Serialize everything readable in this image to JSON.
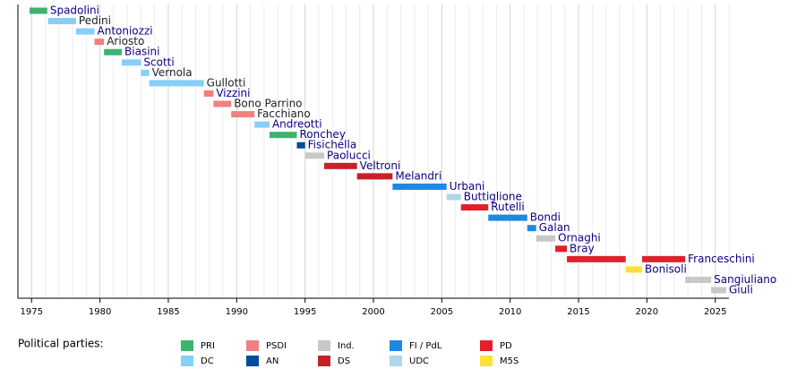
{
  "chart_data": {
    "type": "timeline",
    "xlim": [
      1974,
      2026
    ],
    "xticks": [
      1975,
      1980,
      1985,
      1990,
      1995,
      2000,
      2005,
      2010,
      2015,
      2020,
      2025
    ],
    "minor_xticks": [
      1974,
      1976,
      1977,
      1978,
      1979,
      1981,
      1982,
      1983,
      1984,
      1986,
      1987,
      1988,
      1989,
      1991,
      1992,
      1993,
      1994,
      1996,
      1997,
      1998,
      1999,
      2001,
      2002,
      2003,
      2004,
      2006,
      2007,
      2008,
      2009,
      2011,
      2012,
      2013,
      2014,
      2016,
      2017,
      2018,
      2019,
      2021,
      2022,
      2023,
      2024,
      2026
    ],
    "grid": true,
    "legend_title": "Political parties:",
    "parties": [
      {
        "name": "PRI",
        "color": "#3cb371"
      },
      {
        "name": "DC",
        "color": "#87cefa"
      },
      {
        "name": "PSDI",
        "color": "#f08080"
      },
      {
        "name": "AN",
        "color": "#004c99"
      },
      {
        "name": "Ind.",
        "color": "#c8c8c8"
      },
      {
        "name": "DS",
        "color": "#c8202a"
      },
      {
        "name": "FI / PdL",
        "color": "#1e88e5"
      },
      {
        "name": "UDC",
        "color": "#add8e6"
      },
      {
        "name": "PD",
        "color": "#e0202a"
      },
      {
        "name": "M5S",
        "color": "#ffe135"
      }
    ],
    "rows": [
      {
        "name": "Spadolini",
        "label_color": "#0b0080",
        "terms": [
          {
            "start": 1974.85,
            "end": 1976.15,
            "party": "PRI"
          }
        ]
      },
      {
        "name": "Pedini",
        "label_color": "#202122",
        "terms": [
          {
            "start": 1976.2,
            "end": 1978.25,
            "party": "DC"
          }
        ]
      },
      {
        "name": "Antoniozzi",
        "label_color": "#0b0080",
        "terms": [
          {
            "start": 1978.25,
            "end": 1979.6,
            "party": "DC"
          }
        ]
      },
      {
        "name": "Ariosto",
        "label_color": "#202122",
        "terms": [
          {
            "start": 1979.6,
            "end": 1980.3,
            "party": "PSDI"
          }
        ]
      },
      {
        "name": "Biasini",
        "label_color": "#0b0080",
        "terms": [
          {
            "start": 1980.3,
            "end": 1981.6,
            "party": "PRI"
          }
        ]
      },
      {
        "name": "Scotti",
        "label_color": "#0b0080",
        "terms": [
          {
            "start": 1981.6,
            "end": 1983.0,
            "party": "DC"
          }
        ]
      },
      {
        "name": "Vernola",
        "label_color": "#202122",
        "terms": [
          {
            "start": 1983.0,
            "end": 1983.6,
            "party": "DC"
          }
        ]
      },
      {
        "name": "Gullotti",
        "label_color": "#202122",
        "terms": [
          {
            "start": 1983.6,
            "end": 1987.6,
            "party": "DC"
          }
        ]
      },
      {
        "name": "Vizzini",
        "label_color": "#0b0080",
        "terms": [
          {
            "start": 1987.6,
            "end": 1988.3,
            "party": "PSDI"
          }
        ]
      },
      {
        "name": "Bono Parrino",
        "label_color": "#202122",
        "terms": [
          {
            "start": 1988.3,
            "end": 1989.6,
            "party": "PSDI"
          }
        ]
      },
      {
        "name": "Facchiano",
        "label_color": "#202122",
        "terms": [
          {
            "start": 1989.6,
            "end": 1991.3,
            "party": "PSDI"
          }
        ]
      },
      {
        "name": "Andreotti",
        "label_color": "#0b0080",
        "terms": [
          {
            "start": 1991.3,
            "end": 1992.4,
            "party": "DC"
          }
        ]
      },
      {
        "name": "Ronchey",
        "label_color": "#0b0080",
        "terms": [
          {
            "start": 1992.4,
            "end": 1994.4,
            "party": "PRI"
          }
        ]
      },
      {
        "name": "Fisichella",
        "label_color": "#0b0080",
        "terms": [
          {
            "start": 1994.4,
            "end": 1995.0,
            "party": "AN"
          }
        ]
      },
      {
        "name": "Paolucci",
        "label_color": "#0b0080",
        "terms": [
          {
            "start": 1995.0,
            "end": 1996.4,
            "party": "Ind."
          }
        ]
      },
      {
        "name": "Veltroni",
        "label_color": "#0b0080",
        "terms": [
          {
            "start": 1996.4,
            "end": 1998.8,
            "party": "DS"
          }
        ]
      },
      {
        "name": "Melandri",
        "label_color": "#0b0080",
        "terms": [
          {
            "start": 1998.8,
            "end": 2001.4,
            "party": "DS"
          }
        ]
      },
      {
        "name": "Urbani",
        "label_color": "#0b0080",
        "terms": [
          {
            "start": 2001.4,
            "end": 2005.35,
            "party": "FI / PdL"
          }
        ]
      },
      {
        "name": "Buttiglione",
        "label_color": "#0b0080",
        "terms": [
          {
            "start": 2005.35,
            "end": 2006.4,
            "party": "UDC"
          }
        ]
      },
      {
        "name": "Rutelli",
        "label_color": "#0b0080",
        "terms": [
          {
            "start": 2006.4,
            "end": 2008.4,
            "party": "PD"
          }
        ]
      },
      {
        "name": "Bondi",
        "label_color": "#0b0080",
        "terms": [
          {
            "start": 2008.4,
            "end": 2011.25,
            "party": "FI / PdL"
          }
        ]
      },
      {
        "name": "Galan",
        "label_color": "#0b0080",
        "terms": [
          {
            "start": 2011.25,
            "end": 2011.9,
            "party": "FI / PdL"
          }
        ]
      },
      {
        "name": "Ornaghi",
        "label_color": "#0b0080",
        "terms": [
          {
            "start": 2011.9,
            "end": 2013.3,
            "party": "Ind."
          }
        ]
      },
      {
        "name": "Bray",
        "label_color": "#0b0080",
        "terms": [
          {
            "start": 2013.3,
            "end": 2014.15,
            "party": "PD"
          }
        ]
      },
      {
        "name": "Franceschini",
        "label_color": "#0b0080",
        "terms": [
          {
            "start": 2014.15,
            "end": 2018.45,
            "party": "PD"
          },
          {
            "start": 2019.65,
            "end": 2022.8,
            "party": "PD"
          }
        ]
      },
      {
        "name": "Bonisoli",
        "label_color": "#0b0080",
        "terms": [
          {
            "start": 2018.45,
            "end": 2019.65,
            "party": "M5S"
          }
        ]
      },
      {
        "name": "Sangiuliano",
        "label_color": "#0b0080",
        "terms": [
          {
            "start": 2022.8,
            "end": 2024.7,
            "party": "Ind."
          }
        ]
      },
      {
        "name": "Giuli",
        "label_color": "#0b0080",
        "terms": [
          {
            "start": 2024.7,
            "end": 2025.8,
            "party": "Ind."
          }
        ]
      }
    ]
  }
}
